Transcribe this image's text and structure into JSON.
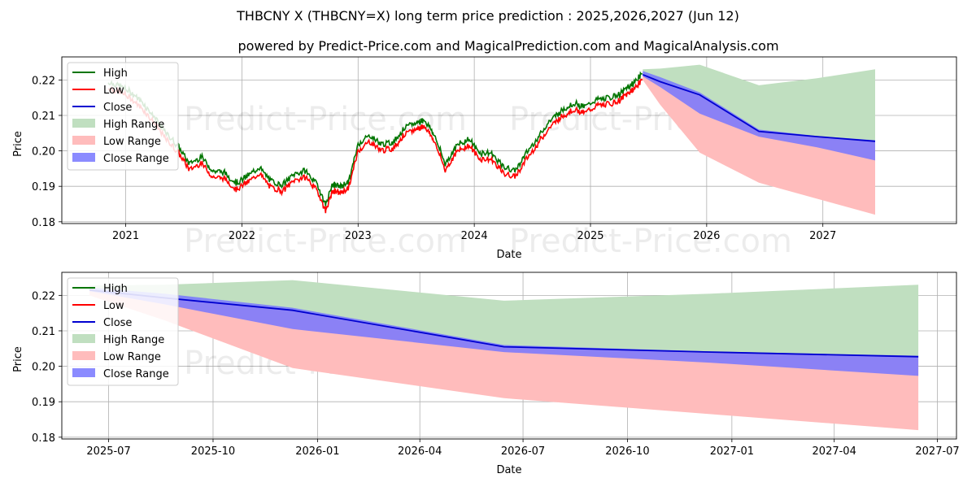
{
  "title": "THBCNY X (THBCNY=X) long term price prediction : 2025,2026,2027 (Jun 12)",
  "subtitle": "powered by Predict-Price.com and MagicalPrediction.com and MagicalAnalysis.com",
  "watermark": "Predict-Price.com",
  "colors": {
    "high": "#007500",
    "low": "#ff0000",
    "close": "#0000d0",
    "high_range": "#c0dfc0",
    "low_range": "#ffbcbc",
    "close_range": "#7777ff"
  },
  "legend": {
    "high": "High",
    "low": "Low",
    "close": "Close",
    "high_range": "High Range",
    "low_range": "Low Range",
    "close_range": "Close Range"
  },
  "chart_data": [
    {
      "type": "line",
      "xlabel": "Date",
      "ylabel": "Price",
      "xlim": [
        2020.45,
        2028.15
      ],
      "ylim": [
        0.1795,
        0.2265
      ],
      "xticks": [
        2021,
        2022,
        2023,
        2024,
        2025,
        2026,
        2027
      ],
      "xtick_labels": [
        "2021",
        "2022",
        "2023",
        "2024",
        "2025",
        "2026",
        "2027"
      ],
      "yticks": [
        0.18,
        0.19,
        0.2,
        0.21,
        0.22
      ],
      "ytick_labels": [
        "0.18",
        "0.19",
        "0.20",
        "0.21",
        "0.22"
      ],
      "history_points_t": [
        2020.85,
        2020.95,
        2021.05,
        2021.15,
        2021.25,
        2021.35,
        2021.45,
        2021.55,
        2021.65,
        2021.75,
        2021.85,
        2021.95,
        2022.05,
        2022.15,
        2022.25,
        2022.35,
        2022.45,
        2022.55,
        2022.65,
        2022.72,
        2022.78,
        2022.85,
        2022.92,
        2023.0,
        2023.1,
        2023.2,
        2023.3,
        2023.4,
        2023.5,
        2023.57,
        2023.65,
        2023.75,
        2023.85,
        2023.95,
        2024.05,
        2024.15,
        2024.25,
        2024.35,
        2024.45,
        2024.55,
        2024.65,
        2024.75,
        2024.85,
        2024.95,
        2025.05,
        2025.15,
        2025.25,
        2025.32,
        2025.38,
        2025.45
      ],
      "history_points_v": [
        0.2185,
        0.2175,
        0.2155,
        0.2125,
        0.2085,
        0.204,
        0.2005,
        0.1955,
        0.1975,
        0.1935,
        0.193,
        0.19,
        0.192,
        0.1945,
        0.1905,
        0.1895,
        0.1925,
        0.1935,
        0.1895,
        0.184,
        0.1895,
        0.189,
        0.1905,
        0.201,
        0.2035,
        0.201,
        0.2015,
        0.2055,
        0.207,
        0.208,
        0.204,
        0.1955,
        0.2005,
        0.2025,
        0.1985,
        0.1985,
        0.1945,
        0.1935,
        0.1985,
        0.203,
        0.2075,
        0.2105,
        0.2125,
        0.2115,
        0.2135,
        0.214,
        0.215,
        0.217,
        0.2185,
        0.221
      ],
      "forecast": {
        "x": [
          2025.45,
          2025.6,
          2025.94,
          2026.45,
          2026.95,
          2027.45
        ],
        "close": [
          0.2215,
          0.2195,
          0.2158,
          0.2055,
          0.204,
          0.2027
        ],
        "high_upper": [
          0.223,
          0.2232,
          0.2243,
          0.2185,
          0.2205,
          0.223
        ],
        "low_lower": [
          0.22,
          0.213,
          0.1995,
          0.191,
          0.1865,
          0.182
        ],
        "close_upper": [
          0.2225,
          0.2208,
          0.2165,
          0.206,
          0.2042,
          0.203
        ],
        "close_lower": [
          0.221,
          0.218,
          0.2105,
          0.204,
          0.201,
          0.1973
        ]
      }
    },
    {
      "type": "area",
      "xlabel": "Date",
      "ylabel": "Price",
      "xlim": [
        2025.383,
        2027.542
      ],
      "ylim": [
        0.1795,
        0.2265
      ],
      "xticks": [
        2025.496,
        2025.748,
        2026.0,
        2026.247,
        2026.496,
        2026.748,
        2027.0,
        2027.247,
        2027.496
      ],
      "xtick_labels": [
        "2025-07",
        "2025-10",
        "2026-01",
        "2026-04",
        "2026-07",
        "2026-10",
        "2027-01",
        "2027-04",
        "2027-07"
      ],
      "yticks": [
        0.18,
        0.19,
        0.2,
        0.21,
        0.22
      ],
      "ytick_labels": [
        "0.18",
        "0.19",
        "0.20",
        "0.21",
        "0.22"
      ],
      "x": [
        2025.45,
        2025.63,
        2025.94,
        2026.45,
        2026.95,
        2027.45
      ],
      "close": [
        0.2215,
        0.2193,
        0.2158,
        0.2055,
        0.204,
        0.2027
      ],
      "high_upper": [
        0.2228,
        0.223,
        0.2243,
        0.2185,
        0.2205,
        0.223
      ],
      "low_lower": [
        0.22,
        0.213,
        0.1995,
        0.191,
        0.1865,
        0.182
      ],
      "close_upper": [
        0.2222,
        0.2205,
        0.2165,
        0.206,
        0.2042,
        0.203
      ],
      "close_lower": [
        0.2212,
        0.2175,
        0.2105,
        0.204,
        0.201,
        0.1973
      ]
    }
  ]
}
